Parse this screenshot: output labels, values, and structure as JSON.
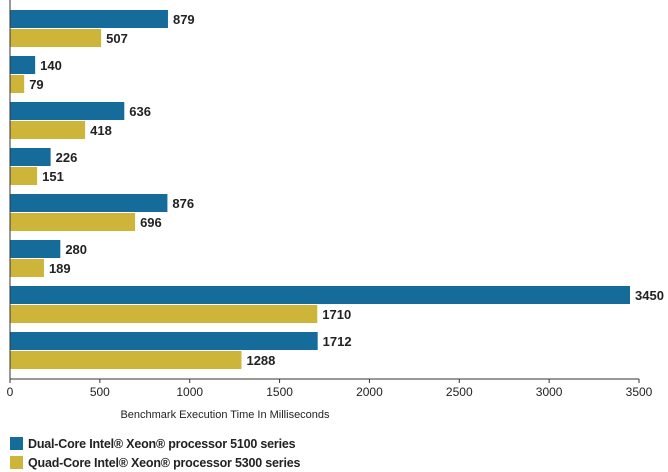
{
  "chart_data": {
    "type": "bar",
    "orientation": "horizontal",
    "title": "",
    "xlabel": "Benchmark Execution Time In Milliseconds",
    "ylabel": "",
    "xlim": [
      0,
      3500
    ],
    "xticks": [
      0,
      500,
      1000,
      1500,
      2000,
      2500,
      3000,
      3500
    ],
    "grid": false,
    "legend_position": "bottom-left",
    "series": [
      {
        "name": "Dual-Core Intel® Xeon® processor 5100 series",
        "color": "#156c9b",
        "values": [
          879,
          140,
          636,
          226,
          876,
          280,
          3450,
          1712
        ]
      },
      {
        "name": "Quad-Core Intel® Xeon® processor 5300 series",
        "color": "#cdb53a",
        "values": [
          507,
          79,
          418,
          151,
          696,
          189,
          1710,
          1288
        ]
      }
    ]
  }
}
